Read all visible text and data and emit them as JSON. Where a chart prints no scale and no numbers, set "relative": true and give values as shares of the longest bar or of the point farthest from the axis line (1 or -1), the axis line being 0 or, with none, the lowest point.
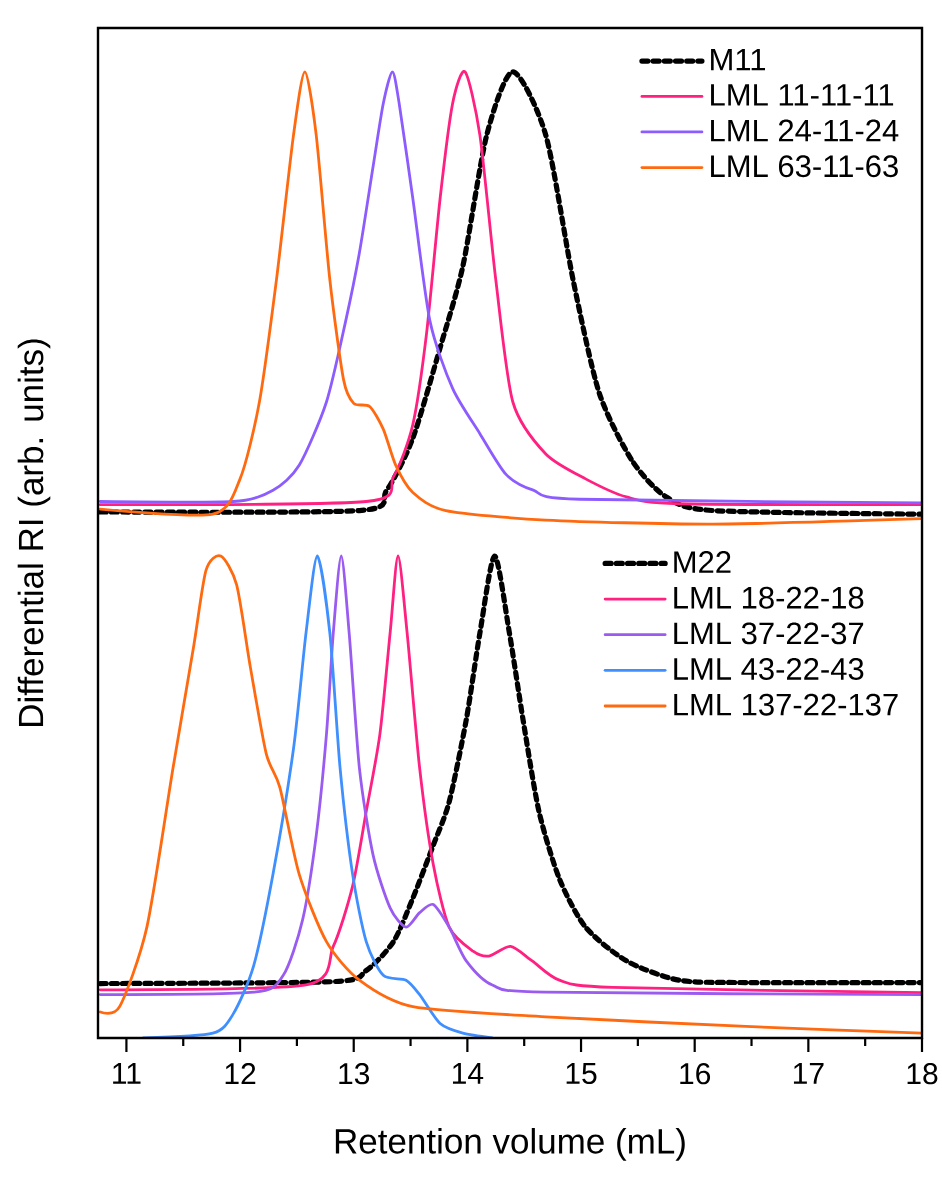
{
  "chart_data": [
    {
      "type": "line",
      "ylabel": "Differential RI (arb. units)",
      "relative": true,
      "xlim": [
        10.75,
        18
      ],
      "tick_labels": false,
      "legend": "top right",
      "series": [
        {
          "name": "M11",
          "color": "#000000",
          "line_style": "dotted",
          "x": [
            10.77,
            13.05,
            13.29,
            13.52,
            13.76,
            13.96,
            14.17,
            14.4,
            14.69,
            14.93,
            15.16,
            15.45,
            15.75,
            16.16,
            18
          ],
          "values": [
            0.027,
            0.03,
            0.075,
            0.19,
            0.39,
            0.57,
            0.86,
            1.0,
            0.86,
            0.54,
            0.29,
            0.14,
            0.06,
            0.03,
            0.022
          ]
        },
        {
          "name": "LML 11-11-11",
          "color": "#ff2080",
          "x": [
            10.77,
            13.11,
            13.35,
            13.52,
            13.64,
            13.76,
            13.87,
            13.98,
            14.11,
            14.25,
            14.4,
            14.69,
            15.04,
            15.4,
            15.86,
            18
          ],
          "values": [
            0.043,
            0.05,
            0.105,
            0.22,
            0.42,
            0.72,
            0.93,
            1.0,
            0.86,
            0.54,
            0.27,
            0.155,
            0.1,
            0.06,
            0.045,
            0.043
          ]
        },
        {
          "name": "LML 24-11-24",
          "color": "#8c5cff",
          "x": [
            10.77,
            11.94,
            12.29,
            12.52,
            12.76,
            12.93,
            13.05,
            13.17,
            13.26,
            13.34,
            13.4,
            13.52,
            13.67,
            13.87,
            14.11,
            14.34,
            14.58,
            14.99,
            18
          ],
          "values": [
            0.05,
            0.05,
            0.075,
            0.13,
            0.27,
            0.45,
            0.6,
            0.79,
            0.93,
            1.0,
            0.93,
            0.72,
            0.45,
            0.3,
            0.2,
            0.11,
            0.075,
            0.055,
            0.047
          ]
        },
        {
          "name": "LML 63-11-63",
          "color": "#ff6a10",
          "x": [
            10.77,
            11.76,
            12.0,
            12.17,
            12.32,
            12.47,
            12.57,
            12.67,
            12.79,
            12.91,
            13.0,
            13.14,
            13.26,
            13.37,
            13.52,
            13.81,
            14.69,
            16.16,
            18
          ],
          "values": [
            0.033,
            0.022,
            0.1,
            0.27,
            0.54,
            0.86,
            1.0,
            0.86,
            0.54,
            0.32,
            0.267,
            0.26,
            0.21,
            0.13,
            0.07,
            0.03,
            0.009,
            0.0,
            0.012
          ]
        }
      ]
    },
    {
      "type": "line",
      "xlabel": "Retention volume (mL)",
      "relative": true,
      "xlim": [
        10.75,
        18
      ],
      "legend": "top right",
      "xticks": [
        11,
        {
          "value": 11.5,
          "label": null
        },
        12,
        {
          "value": 12.5,
          "label": null
        },
        13,
        {
          "value": 13.5,
          "label": null
        },
        14,
        {
          "value": 14.5,
          "label": null
        },
        15,
        {
          "value": 15.5,
          "label": null
        },
        16,
        {
          "value": 16.5,
          "label": null
        },
        17,
        {
          "value": 17.5,
          "label": null
        },
        18
      ],
      "series": [
        {
          "name": "M22",
          "color": "#000000",
          "line_style": "dotted",
          "x": [
            10.77,
            12.82,
            13.11,
            13.35,
            13.52,
            13.7,
            13.84,
            13.99,
            14.11,
            14.24,
            14.37,
            14.49,
            14.63,
            14.81,
            15.04,
            15.4,
            15.86,
            16.45,
            18
          ],
          "values": [
            0.113,
            0.117,
            0.14,
            0.2,
            0.29,
            0.4,
            0.49,
            0.66,
            0.84,
            1.0,
            0.84,
            0.66,
            0.47,
            0.33,
            0.23,
            0.16,
            0.12,
            0.115,
            0.115
          ]
        },
        {
          "name": "LML 18-22-18",
          "color": "#ff2080",
          "x": [
            10.77,
            12.58,
            12.82,
            12.99,
            13.11,
            13.23,
            13.32,
            13.39,
            13.47,
            13.58,
            13.7,
            13.84,
            14.05,
            14.19,
            14.38,
            14.57,
            14.81,
            15.28,
            18
          ],
          "values": [
            0.1,
            0.11,
            0.19,
            0.315,
            0.47,
            0.63,
            0.84,
            1.0,
            0.84,
            0.56,
            0.36,
            0.23,
            0.18,
            0.17,
            0.19,
            0.16,
            0.12,
            0.105,
            0.094
          ]
        },
        {
          "name": "LML 37-22-37",
          "color": "#9a5cf0",
          "x": [
            10.77,
            12.12,
            12.38,
            12.55,
            12.67,
            12.76,
            12.82,
            12.89,
            12.96,
            13.05,
            13.17,
            13.32,
            13.46,
            13.58,
            13.7,
            13.84,
            13.99,
            14.22,
            14.69,
            18
          ],
          "values": [
            0.09,
            0.095,
            0.13,
            0.245,
            0.42,
            0.63,
            0.84,
            1.0,
            0.84,
            0.56,
            0.38,
            0.27,
            0.23,
            0.26,
            0.277,
            0.23,
            0.16,
            0.11,
            0.095,
            0.09
          ]
        },
        {
          "name": "LML 43-22-43",
          "color": "#3f8fff",
          "x": [
            11.15,
            11.76,
            11.94,
            12.12,
            12.29,
            12.47,
            12.58,
            12.68,
            12.79,
            12.88,
            12.99,
            13.11,
            13.26,
            13.46,
            13.58,
            13.76,
            13.96,
            14.22
          ],
          "values": [
            0.0,
            0.01,
            0.05,
            0.15,
            0.34,
            0.6,
            0.84,
            1.0,
            0.84,
            0.56,
            0.34,
            0.2,
            0.13,
            0.12,
            0.09,
            0.03,
            0.01,
            0.0
          ]
        },
        {
          "name": "LML 137-22-137",
          "color": "#ff6a10",
          "x": [
            10.77,
            10.94,
            11.18,
            11.41,
            11.59,
            11.7,
            11.83,
            11.97,
            12.09,
            12.23,
            12.35,
            12.52,
            12.76,
            13.05,
            13.52,
            14.69,
            16.45,
            18
          ],
          "values": [
            0.054,
            0.065,
            0.23,
            0.56,
            0.81,
            0.97,
            1.0,
            0.94,
            0.77,
            0.59,
            0.52,
            0.34,
            0.2,
            0.12,
            0.065,
            0.044,
            0.024,
            0.01
          ]
        }
      ]
    }
  ]
}
